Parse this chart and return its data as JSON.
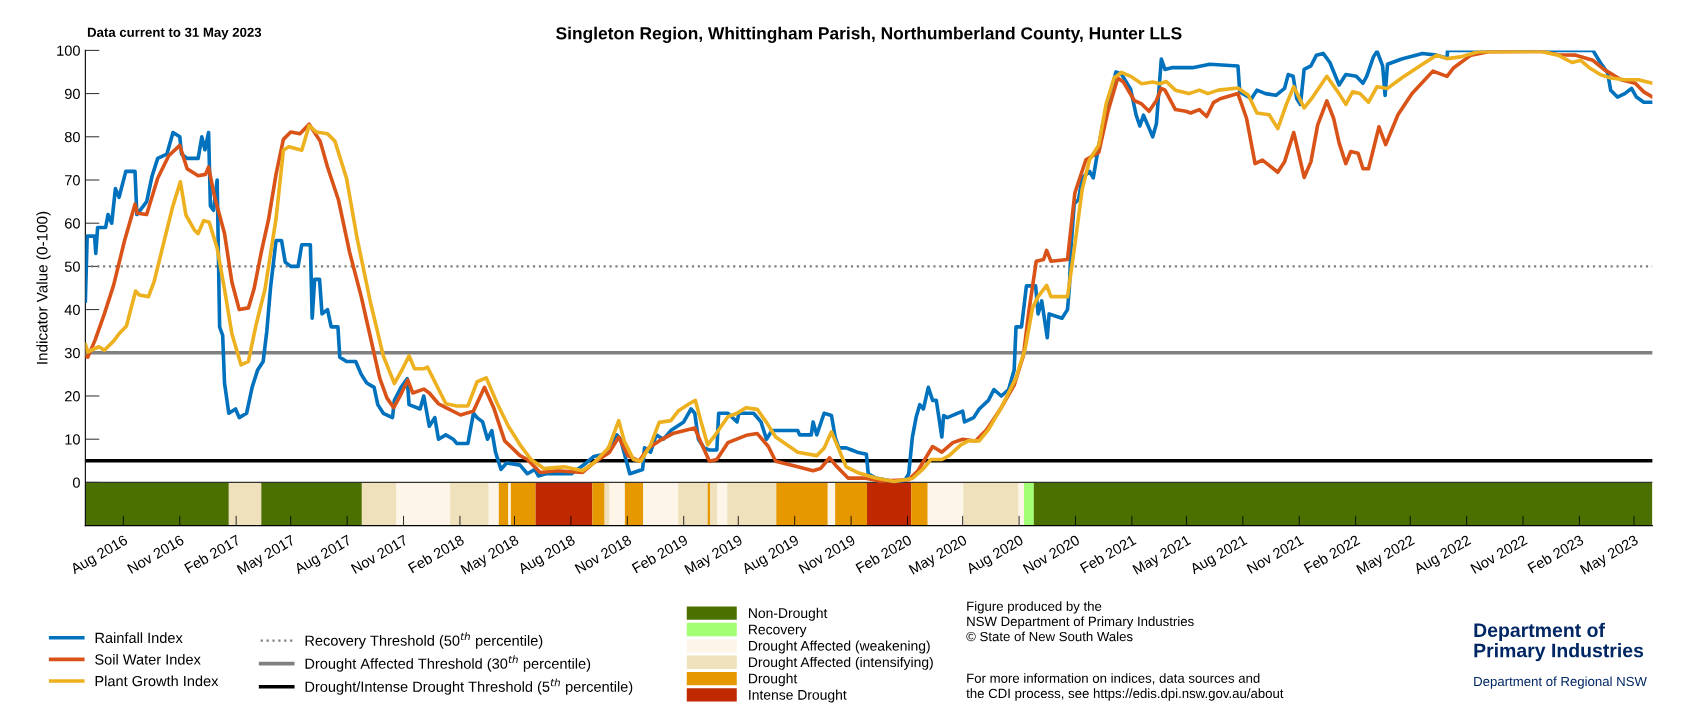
{
  "chart_data": {
    "type": "line",
    "title": "Singleton Region, Whittingham Parish, Northumberland County, Hunter LLS",
    "ylabel": "Indicator Value (0-100)",
    "annotations": [
      "Data current to 31 May 2023",
      "Figure produced by the\nNSW Department of Primary Industries\n© State of New South Wales",
      "For more information on indices, data sources and\nthe CDI process, see https://edis.dpi.nsw.gov.au/about",
      "Department of\nPrimary Industries",
      "Department of Regional NSW"
    ],
    "xlim": [
      "2016-05-31",
      "2023-05-31"
    ],
    "ylim": [
      -10,
      100
    ],
    "yticks": [
      0,
      10,
      20,
      30,
      40,
      50,
      60,
      70,
      80,
      90,
      100
    ],
    "xticks": [
      {
        "value": "2016-08-01",
        "label": "Aug 2016"
      },
      {
        "value": "2016-11-01",
        "label": "Nov 2016"
      },
      {
        "value": "2017-02-01",
        "label": "Feb 2017"
      },
      {
        "value": "2017-05-01",
        "label": "May 2017"
      },
      {
        "value": "2017-08-01",
        "label": "Aug 2017"
      },
      {
        "value": "2017-11-01",
        "label": "Nov 2017"
      },
      {
        "value": "2018-02-01",
        "label": "Feb 2018"
      },
      {
        "value": "2018-05-01",
        "label": "May 2018"
      },
      {
        "value": "2018-08-01",
        "label": "Aug 2018"
      },
      {
        "value": "2018-11-01",
        "label": "Nov 2018"
      },
      {
        "value": "2019-02-01",
        "label": "Feb 2019"
      },
      {
        "value": "2019-05-01",
        "label": "May 2019"
      },
      {
        "value": "2019-08-01",
        "label": "Aug 2019"
      },
      {
        "value": "2019-11-01",
        "label": "Nov 2019"
      },
      {
        "value": "2020-02-01",
        "label": "Feb 2020"
      },
      {
        "value": "2020-05-01",
        "label": "May 2020"
      },
      {
        "value": "2020-08-01",
        "label": "Aug 2020"
      },
      {
        "value": "2020-11-01",
        "label": "Nov 2020"
      },
      {
        "value": "2021-02-01",
        "label": "Feb 2021"
      },
      {
        "value": "2021-05-01",
        "label": "May 2021"
      },
      {
        "value": "2021-08-01",
        "label": "Aug 2021"
      },
      {
        "value": "2021-11-01",
        "label": "Nov 2021"
      },
      {
        "value": "2022-02-01",
        "label": "Feb 2022"
      },
      {
        "value": "2022-05-01",
        "label": "May 2022"
      },
      {
        "value": "2022-08-01",
        "label": "Aug 2022"
      },
      {
        "value": "2022-11-01",
        "label": "Nov 2022"
      },
      {
        "value": "2023-02-01",
        "label": "Feb 2023"
      },
      {
        "value": "2023-05-01",
        "label": "May 2023"
      }
    ],
    "grid": false,
    "legend": "bottom",
    "series": [
      {
        "name": "Rainfall Index",
        "color": "#0072bd",
        "x": [
          "2016-05-31",
          "2016-06-03",
          "2016-06-15",
          "2016-06-17",
          "2016-06-20",
          "2016-07-03",
          "2016-07-07",
          "2016-07-13",
          "2016-07-19",
          "2016-07-25",
          "2016-08-05",
          "2016-08-20",
          "2016-08-23",
          "2016-09-08",
          "2016-09-17",
          "2016-09-26",
          "2016-10-11",
          "2016-10-21",
          "2016-11-01",
          "2016-11-04",
          "2016-11-13",
          "2016-12-01",
          "2016-12-07",
          "2016-12-12",
          "2016-12-18",
          "2016-12-21",
          "2016-12-26",
          "2017-01-01",
          "2017-01-05",
          "2017-01-10",
          "2017-01-13",
          "2017-01-20",
          "2017-01-31",
          "2017-02-06",
          "2017-02-18",
          "2017-02-27",
          "2017-03-08",
          "2017-03-17",
          "2017-03-23",
          "2017-03-29",
          "2017-04-07",
          "2017-04-16",
          "2017-04-22",
          "2017-05-01",
          "2017-05-13",
          "2017-05-19",
          "2017-06-02",
          "2017-06-05",
          "2017-06-09",
          "2017-06-17",
          "2017-06-21",
          "2017-06-30",
          "2017-07-06",
          "2017-07-17",
          "2017-07-20",
          "2017-07-31",
          "2017-08-15",
          "2017-08-24",
          "2017-09-02",
          "2017-09-14",
          "2017-09-20",
          "2017-09-29",
          "2017-10-14",
          "2017-10-17",
          "2017-10-28",
          "2017-11-07",
          "2017-11-10",
          "2017-11-28",
          "2017-12-04",
          "2017-12-13",
          "2017-12-22",
          "2017-12-28",
          "2018-01-09",
          "2018-01-21",
          "2018-01-27",
          "2018-02-14",
          "2018-02-23",
          "2018-03-01",
          "2018-03-10",
          "2018-03-18",
          "2018-03-25",
          "2018-03-31",
          "2018-04-09",
          "2018-04-18",
          "2018-05-10",
          "2018-05-22",
          "2018-06-03",
          "2018-06-09",
          "2018-06-21",
          "2018-08-02",
          "2018-08-26",
          "2018-09-07",
          "2018-09-25",
          "2018-10-15",
          "2018-10-21",
          "2018-11-05",
          "2018-11-26",
          "2018-11-29",
          "2018-12-09",
          "2018-12-18",
          "2018-12-30",
          "2019-01-11",
          "2019-02-01",
          "2019-02-13",
          "2019-02-19",
          "2019-02-25",
          "2019-03-06",
          "2019-03-15",
          "2019-03-27",
          "2019-03-30",
          "2019-04-14",
          "2019-04-29",
          "2019-05-02",
          "2019-05-26",
          "2019-06-07",
          "2019-06-16",
          "2019-06-25",
          "2019-07-01",
          "2019-08-06",
          "2019-08-09",
          "2019-08-28",
          "2019-08-31",
          "2019-09-06",
          "2019-09-18",
          "2019-09-30",
          "2019-10-06",
          "2019-10-12",
          "2019-10-24",
          "2019-11-02",
          "2019-11-11",
          "2019-11-26",
          "2019-11-29",
          "2019-12-11",
          "2020-01-10",
          "2020-01-28",
          "2020-02-03",
          "2020-02-09",
          "2020-02-15",
          "2020-02-21",
          "2020-02-27",
          "2020-03-06",
          "2020-03-13",
          "2020-03-19",
          "2020-03-28",
          "2020-03-31",
          "2020-04-06",
          "2020-05-01",
          "2020-05-04",
          "2020-05-19",
          "2020-05-28",
          "2020-06-12",
          "2020-06-21",
          "2020-07-03",
          "2020-07-15",
          "2020-07-24",
          "2020-07-27",
          "2020-08-05",
          "2020-08-13",
          "2020-08-28",
          "2020-09-01",
          "2020-09-07",
          "2020-09-16",
          "2020-09-19",
          "2020-10-10",
          "2020-10-19",
          "2020-10-22",
          "2020-10-25",
          "2020-10-30",
          "2020-11-06",
          "2020-11-12",
          "2020-11-24",
          "2020-11-30",
          "2020-12-06",
          "2020-12-15",
          "2020-12-27",
          "2021-01-06",
          "2021-01-15",
          "2021-01-30",
          "2021-02-08",
          "2021-02-14",
          "2021-02-20",
          "2021-03-01",
          "2021-03-07",
          "2021-03-13",
          "2021-03-21",
          "2021-03-27",
          "2021-04-07",
          "2021-05-11",
          "2021-06-08",
          "2021-07-24",
          "2021-07-27",
          "2021-08-15",
          "2021-08-24",
          "2021-09-07",
          "2021-09-24",
          "2021-10-08",
          "2021-10-14",
          "2021-10-22",
          "2021-10-28",
          "2021-11-03",
          "2021-11-09",
          "2021-11-20",
          "2021-11-29",
          "2021-12-10",
          "2021-12-21",
          "2022-01-05",
          "2022-01-16",
          "2022-02-02",
          "2022-02-13",
          "2022-02-19",
          "2022-03-02",
          "2022-03-08",
          "2022-03-17",
          "2022-03-21",
          "2022-03-25",
          "2022-04-17",
          "2022-05-21",
          "2022-06-13",
          "2022-06-30",
          "2022-07-01",
          "2023-02-23",
          "2023-03-07",
          "2023-03-19",
          "2023-03-24",
          "2023-04-04",
          "2023-04-16",
          "2023-04-27",
          "2023-05-05",
          "2023-05-17",
          "2023-05-31"
        ],
        "values": [
          42,
          57,
          57,
          53,
          59,
          59,
          62,
          60,
          68,
          66,
          72,
          72,
          62,
          65,
          71,
          75,
          76,
          81,
          80,
          76,
          75,
          75,
          80,
          77,
          81,
          64,
          63,
          70,
          36,
          34,
          23,
          16,
          17,
          15,
          16,
          22,
          26,
          28,
          35,
          45,
          56,
          56,
          51,
          50,
          50,
          55,
          55,
          38,
          47,
          47,
          39,
          40,
          36,
          36,
          29,
          28,
          28,
          25,
          23,
          22,
          18,
          16,
          15,
          19,
          22,
          24,
          18,
          17,
          20,
          13,
          15,
          10,
          11,
          10,
          9,
          9,
          16,
          15,
          14,
          10,
          12,
          7,
          3,
          4.5,
          4,
          2,
          3,
          1.5,
          2,
          2,
          4.5,
          6,
          6.5,
          11,
          10,
          2,
          3,
          8,
          7,
          11,
          10,
          12,
          14,
          17,
          16,
          10,
          8,
          7.5,
          7.5,
          16,
          16,
          14,
          16,
          16,
          14,
          10,
          12,
          12,
          12,
          11,
          11,
          14,
          11,
          16,
          15.5,
          10.5,
          8,
          8,
          7.5,
          7,
          6.5,
          2,
          1,
          0.2,
          0.5,
          2,
          10.5,
          15,
          18,
          17,
          22,
          19,
          19,
          10.5,
          15.5,
          15,
          16.5,
          14,
          15,
          17,
          19,
          21.5,
          20,
          21.5,
          26,
          36,
          36,
          45.5,
          45.5,
          39,
          42,
          33.5,
          39,
          38,
          40,
          45,
          55,
          64.5,
          65.5,
          70.5,
          72,
          70.5,
          75.5,
          82.5,
          89,
          95,
          94.5,
          91,
          85,
          82.5,
          85,
          82,
          80,
          83,
          98,
          95.6,
          96,
          96,
          96.8,
          96.4,
          90.4,
          88.8,
          90.8,
          90,
          89.6,
          91.2,
          94.4,
          94,
          88.8,
          87.5,
          95.6,
          96.4,
          98.9,
          99.3,
          97.2,
          92,
          94.4,
          94,
          92.4,
          94,
          98.5,
          99.8,
          96.4,
          89.6,
          96.8,
          98,
          99.3,
          98.9,
          98.2,
          100,
          100,
          97.2,
          94.8,
          90.8,
          89.2,
          90,
          91.2,
          89.2,
          88,
          88
        ]
      },
      {
        "name": "Soil Water Index",
        "color": "#d95319",
        "x": [
          "2016-05-31",
          "2016-06-04",
          "2016-06-16",
          "2016-07-01",
          "2016-07-16",
          "2016-08-03",
          "2016-08-20",
          "2016-08-24",
          "2016-09-08",
          "2016-09-26",
          "2016-10-14",
          "2016-11-01",
          "2016-11-13",
          "2016-12-01",
          "2016-12-13",
          "2016-12-18",
          "2016-12-28",
          "2017-01-13",
          "2017-01-25",
          "2017-02-06",
          "2017-02-21",
          "2017-03-02",
          "2017-03-14",
          "2017-03-26",
          "2017-04-07",
          "2017-04-19",
          "2017-05-01",
          "2017-05-16",
          "2017-05-31",
          "2017-06-18",
          "2017-06-30",
          "2017-07-18",
          "2017-08-05",
          "2017-08-24",
          "2017-09-08",
          "2017-09-23",
          "2017-10-05",
          "2017-10-16",
          "2017-10-26",
          "2017-11-08",
          "2017-11-16",
          "2017-12-04",
          "2017-12-13",
          "2017-12-28",
          "2018-01-09",
          "2018-02-02",
          "2018-02-23",
          "2018-03-13",
          "2018-03-28",
          "2018-04-15",
          "2018-05-10",
          "2018-05-22",
          "2018-06-12",
          "2018-07-09",
          "2018-08-20",
          "2018-09-07",
          "2018-10-03",
          "2018-10-18",
          "2018-11-02",
          "2018-11-20",
          "2018-12-05",
          "2018-12-23",
          "2019-01-14",
          "2019-02-19",
          "2019-02-28",
          "2019-03-15",
          "2019-03-27",
          "2019-04-14",
          "2019-05-14",
          "2019-06-01",
          "2019-06-19",
          "2019-07-01",
          "2019-08-06",
          "2019-08-31",
          "2019-09-12",
          "2019-09-27",
          "2019-10-09",
          "2019-10-27",
          "2019-11-23",
          "2019-12-17",
          "2020-02-03",
          "2020-02-18",
          "2020-03-13",
          "2020-03-28",
          "2020-04-15",
          "2020-05-01",
          "2020-05-22",
          "2020-06-09",
          "2020-07-03",
          "2020-07-24",
          "2020-08-08",
          "2020-08-17",
          "2020-08-29",
          "2020-09-10",
          "2020-09-15",
          "2020-09-22",
          "2020-10-19",
          "2020-10-31",
          "2020-11-18",
          "2020-12-09",
          "2020-12-24",
          "2021-01-09",
          "2021-01-18",
          "2021-02-05",
          "2021-02-17",
          "2021-03-01",
          "2021-03-13",
          "2021-03-21",
          "2021-03-27",
          "2021-04-13",
          "2021-04-30",
          "2021-05-08",
          "2021-05-22",
          "2021-06-03",
          "2021-06-14",
          "2021-06-25",
          "2021-07-24",
          "2021-08-07",
          "2021-08-21",
          "2021-09-02",
          "2021-09-13",
          "2021-09-27",
          "2021-10-08",
          "2021-10-23",
          "2021-10-31",
          "2021-11-09",
          "2021-11-20",
          "2021-12-01",
          "2021-12-16",
          "2021-12-27",
          "2022-01-05",
          "2022-01-16",
          "2022-01-24",
          "2022-02-05",
          "2022-02-13",
          "2022-02-22",
          "2022-03-11",
          "2022-03-22",
          "2022-04-11",
          "2022-05-04",
          "2022-06-07",
          "2022-06-30",
          "2022-07-11",
          "2022-08-08",
          "2022-09-06",
          "2022-11-30",
          "2022-12-28",
          "2023-01-26",
          "2023-02-23",
          "2023-03-13",
          "2023-04-10",
          "2023-05-03",
          "2023-05-17",
          "2023-05-31"
        ],
        "values": [
          29.3,
          29,
          33,
          39,
          45.6,
          56,
          64.4,
          62.3,
          62,
          70.4,
          75.6,
          78,
          72.6,
          71,
          71.3,
          73,
          66,
          57.6,
          46.4,
          40,
          40.4,
          44.7,
          53.3,
          61,
          71.3,
          79.4,
          81.1,
          80.7,
          82.9,
          79,
          73,
          65.3,
          53.3,
          43,
          33.6,
          24.2,
          19.5,
          17.3,
          19.9,
          23.7,
          20.7,
          21.6,
          20.7,
          18.2,
          17.3,
          15.6,
          16.5,
          22,
          17.3,
          9.6,
          6.2,
          5.3,
          2.3,
          2.7,
          2.3,
          4.5,
          7,
          10.5,
          6.2,
          4.9,
          7.9,
          9.6,
          11.3,
          12.6,
          9.6,
          4.9,
          5.3,
          9.2,
          10.9,
          11.3,
          8.3,
          4.9,
          3.6,
          2.7,
          3.2,
          5.7,
          3.6,
          1,
          1,
          0.3,
          0.6,
          2.7,
          8.3,
          7,
          9.2,
          10,
          9.6,
          12.2,
          17.3,
          22.5,
          29.3,
          39.6,
          51.2,
          51.6,
          53.7,
          51.2,
          51.6,
          67,
          74.7,
          76.4,
          85.9,
          93.6,
          92.7,
          88.4,
          87.6,
          85.9,
          88.4,
          91.2,
          90.8,
          86.3,
          85.9,
          85.5,
          86.3,
          84.7,
          87.9,
          88.8,
          90,
          84.3,
          73.8,
          74.6,
          73.4,
          71.8,
          74.2,
          81,
          76.2,
          70.6,
          74.2,
          82.7,
          88.3,
          84.3,
          78.6,
          73.8,
          76.6,
          76.2,
          72.6,
          72.6,
          82.3,
          78.2,
          85.1,
          90,
          95.2,
          94,
          96,
          98.9,
          99.7,
          99.8,
          99,
          98.9,
          97.7,
          95.6,
          93.2,
          92.4,
          90.4,
          89.2
        ]
      },
      {
        "name": "Plant Growth Index",
        "color": "#edb120",
        "x": [
          "2016-05-31",
          "2016-06-04",
          "2016-06-22",
          "2016-07-01",
          "2016-07-16",
          "2016-07-25",
          "2016-08-06",
          "2016-08-21",
          "2016-08-27",
          "2016-09-11",
          "2016-09-20",
          "2016-10-05",
          "2016-10-20",
          "2016-11-02",
          "2016-11-11",
          "2016-11-25",
          "2016-12-01",
          "2016-12-10",
          "2016-12-19",
          "2017-01-01",
          "2017-01-13",
          "2017-01-25",
          "2017-02-09",
          "2017-02-21",
          "2017-03-05",
          "2017-03-20",
          "2017-04-07",
          "2017-04-19",
          "2017-04-28",
          "2017-05-19",
          "2017-05-31",
          "2017-06-12",
          "2017-06-30",
          "2017-07-12",
          "2017-07-31",
          "2017-08-17",
          "2017-09-08",
          "2017-09-29",
          "2017-10-17",
          "2017-10-29",
          "2017-11-10",
          "2017-11-19",
          "2017-12-04",
          "2017-12-10",
          "2017-12-22",
          "2018-01-09",
          "2018-01-27",
          "2018-02-14",
          "2018-03-01",
          "2018-03-16",
          "2018-04-03",
          "2018-04-21",
          "2018-05-10",
          "2018-05-28",
          "2018-06-18",
          "2018-07-21",
          "2018-08-20",
          "2018-09-07",
          "2018-10-01",
          "2018-10-18",
          "2018-10-27",
          "2018-11-11",
          "2018-11-23",
          "2018-12-09",
          "2018-12-23",
          "2019-01-11",
          "2019-01-23",
          "2019-02-10",
          "2019-02-20",
          "2019-02-28",
          "2019-03-12",
          "2019-03-24",
          "2019-04-14",
          "2019-04-29",
          "2019-05-14",
          "2019-06-01",
          "2019-06-16",
          "2019-07-01",
          "2019-08-06",
          "2019-09-06",
          "2019-09-18",
          "2019-09-30",
          "2019-10-09",
          "2019-10-24",
          "2019-11-11",
          "2019-12-11",
          "2020-01-10",
          "2020-02-09",
          "2020-02-27",
          "2020-03-10",
          "2020-03-28",
          "2020-04-09",
          "2020-04-28",
          "2020-05-10",
          "2020-05-28",
          "2020-06-12",
          "2020-07-03",
          "2020-07-27",
          "2020-08-11",
          "2020-08-23",
          "2020-09-01",
          "2020-09-15",
          "2020-09-22",
          "2020-10-19",
          "2020-10-31",
          "2020-11-12",
          "2020-11-24",
          "2020-12-09",
          "2020-12-21",
          "2021-01-03",
          "2021-01-15",
          "2021-01-30",
          "2021-02-17",
          "2021-03-07",
          "2021-03-19",
          "2021-03-21",
          "2021-03-29",
          "2021-04-13",
          "2021-05-05",
          "2021-05-22",
          "2021-06-05",
          "2021-06-22",
          "2021-07-24",
          "2021-08-10",
          "2021-08-24",
          "2021-09-13",
          "2021-09-27",
          "2021-10-11",
          "2021-10-23",
          "2021-11-09",
          "2021-11-23",
          "2021-12-16",
          "2022-01-05",
          "2022-01-16",
          "2022-01-27",
          "2022-02-08",
          "2022-02-22",
          "2022-03-08",
          "2022-03-25",
          "2022-04-17",
          "2022-05-21",
          "2022-06-13",
          "2022-06-30",
          "2022-07-22",
          "2022-08-20",
          "2022-11-30",
          "2022-12-28",
          "2023-01-20",
          "2023-02-03",
          "2023-02-17",
          "2023-03-07",
          "2023-03-24",
          "2023-04-16",
          "2023-05-08",
          "2023-05-31"
        ],
        "values": [
          31.9,
          30.2,
          31.4,
          30.6,
          32.7,
          34.4,
          36.2,
          44.3,
          43.4,
          43,
          46.4,
          55,
          63.6,
          69.6,
          61.9,
          58.4,
          57.6,
          60.6,
          60.2,
          54.2,
          44.7,
          34.4,
          27.2,
          28,
          36.2,
          44.7,
          61,
          76.9,
          77.7,
          76.9,
          82.6,
          81.1,
          80.7,
          79,
          70.4,
          56.7,
          41.7,
          29.3,
          22.9,
          25.9,
          29.3,
          26.3,
          26.3,
          26.7,
          23.3,
          18.2,
          17.7,
          17.7,
          23.3,
          24.2,
          18.2,
          13,
          8.7,
          5.3,
          3.2,
          3.6,
          2.7,
          4.5,
          7.9,
          14.3,
          9.6,
          5.3,
          4.9,
          8.7,
          13.9,
          14.3,
          16.5,
          18.2,
          19,
          14.7,
          8.7,
          10.9,
          15.2,
          16,
          17.3,
          16.9,
          13.9,
          10.5,
          7,
          6.2,
          7.9,
          11.7,
          8.7,
          3.6,
          2.3,
          1,
          0.2,
          0.9,
          3.2,
          5.3,
          5.3,
          6.2,
          8.7,
          9.6,
          9.6,
          12.2,
          17.3,
          24.2,
          31,
          40.4,
          43,
          45.6,
          43,
          43,
          55,
          67.9,
          74.7,
          78.1,
          87.6,
          93.6,
          94.9,
          94,
          92.3,
          92.7,
          92.3,
          92.4,
          92.8,
          90.8,
          90,
          90.8,
          90,
          90.8,
          91.3,
          89.6,
          85.5,
          85.1,
          81.9,
          87.5,
          91.6,
          86.7,
          89.2,
          94,
          90,
          87.5,
          90.4,
          90,
          88,
          91.6,
          91.2,
          93.6,
          96.8,
          98.9,
          98.1,
          98.5,
          99.7,
          99.8,
          98.9,
          97.2,
          97.7,
          96,
          94.4,
          93.6,
          93.2,
          93.2,
          92.4
        ]
      }
    ],
    "ref_lines": [
      {
        "axis": "y",
        "value": 50,
        "label": "Recovery Threshold (50$^{th}$ percentile)",
        "color": "#808080",
        "line_style": "dotted"
      },
      {
        "axis": "y",
        "value": 30,
        "label": "Drought Affected Threshold (30$^{th}$ percentile)",
        "color": "#808080",
        "line_style": "solid"
      },
      {
        "axis": "y",
        "value": 5,
        "label": "Drought/Intense Drought Threshold (5$^{th}$ percentile)",
        "color": "#000000",
        "line_style": "solid"
      }
    ],
    "bands": [
      {
        "axis": "x",
        "from": "2016-05-31",
        "to": "2017-01-20",
        "label": "Non-Drought",
        "color": "#4c7000"
      },
      {
        "axis": "x",
        "from": "2020-08-09",
        "to": "2020-08-25",
        "label": "Recovery",
        "color": "#a3ff73"
      },
      {
        "axis": "x",
        "from": "2017-10-20",
        "to": "2018-01-16",
        "label": "Drought Affected (weakening)",
        "color": "#fdf5e8"
      },
      {
        "axis": "x",
        "from": "2017-01-20",
        "to": "2017-03-14",
        "label": "Drought Affected (intensifying)",
        "color": "#eee1bb"
      },
      {
        "axis": "x",
        "from": "2018-04-05",
        "to": "2018-04-21",
        "label": "Drought",
        "color": "#e69800"
      },
      {
        "axis": "x",
        "from": "2018-06-04",
        "to": "2018-09-05",
        "label": "Intense Drought",
        "color": "#c02800"
      },
      {
        "axis": "x",
        "from": "2017-03-14",
        "to": "2017-08-25",
        "color": "#4c7000"
      },
      {
        "axis": "x",
        "from": "2017-08-25",
        "to": "2017-10-20",
        "color": "#eee1bb"
      },
      {
        "axis": "x",
        "from": "2018-01-16",
        "to": "2018-03-20",
        "color": "#eee1bb"
      },
      {
        "axis": "x",
        "from": "2018-03-20",
        "to": "2018-04-05",
        "color": "#fdf5e8"
      },
      {
        "axis": "x",
        "from": "2018-04-21",
        "to": "2018-04-25",
        "color": "#fdf5e8"
      },
      {
        "axis": "x",
        "from": "2018-04-25",
        "to": "2018-06-04",
        "color": "#e69800"
      },
      {
        "axis": "x",
        "from": "2018-09-05",
        "to": "2018-09-25",
        "color": "#e69800"
      },
      {
        "axis": "x",
        "from": "2018-09-25",
        "to": "2018-10-03",
        "color": "#eee1bb"
      },
      {
        "axis": "x",
        "from": "2018-10-03",
        "to": "2018-10-28",
        "color": "#fdf5e8"
      },
      {
        "axis": "x",
        "from": "2018-10-28",
        "to": "2018-11-27",
        "color": "#e69800"
      },
      {
        "axis": "x",
        "from": "2018-11-27",
        "to": "2019-01-23",
        "color": "#fdf5e8"
      },
      {
        "axis": "x",
        "from": "2019-01-23",
        "to": "2019-03-12",
        "color": "#eee1bb"
      },
      {
        "axis": "x",
        "from": "2019-03-12",
        "to": "2019-03-16",
        "color": "#e69800"
      },
      {
        "axis": "x",
        "from": "2019-03-16",
        "to": "2019-03-28",
        "color": "#eee1bb"
      },
      {
        "axis": "x",
        "from": "2019-03-28",
        "to": "2019-04-13",
        "color": "#fdf5e8"
      },
      {
        "axis": "x",
        "from": "2019-04-13",
        "to": "2019-07-02",
        "color": "#eee1bb"
      },
      {
        "axis": "x",
        "from": "2019-07-02",
        "to": "2019-09-24",
        "color": "#e69800"
      },
      {
        "axis": "x",
        "from": "2019-09-24",
        "to": "2019-10-06",
        "color": "#fdf5e8"
      },
      {
        "axis": "x",
        "from": "2019-10-06",
        "to": "2019-11-27",
        "color": "#e69800"
      },
      {
        "axis": "x",
        "from": "2019-11-27",
        "to": "2020-02-07",
        "color": "#c02800"
      },
      {
        "axis": "x",
        "from": "2020-02-07",
        "to": "2020-03-05",
        "color": "#e69800"
      },
      {
        "axis": "x",
        "from": "2020-03-05",
        "to": "2020-05-02",
        "color": "#fdf5e8"
      },
      {
        "axis": "x",
        "from": "2020-05-02",
        "to": "2020-07-31",
        "color": "#eee1bb"
      },
      {
        "axis": "x",
        "from": "2020-07-31",
        "to": "2020-08-09",
        "color": "#fdf5e8"
      },
      {
        "axis": "x",
        "from": "2020-08-25",
        "to": "2023-05-31",
        "color": "#4c7000"
      }
    ]
  }
}
